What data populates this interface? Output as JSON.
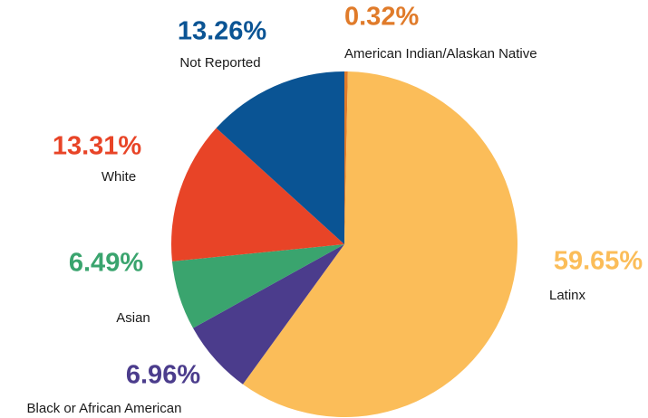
{
  "chart_data": {
    "type": "pie",
    "categories": [
      "American Indian/Alaskan Native",
      "Latinx",
      "Black or African American",
      "Asian",
      "White",
      "Not Reported"
    ],
    "values": [
      0.32,
      59.65,
      6.96,
      6.49,
      13.31,
      13.26
    ],
    "value_labels": [
      "0.32%",
      "59.65%",
      "6.96%",
      "6.49%",
      "13.31%",
      "13.26%"
    ],
    "colors": [
      "#e07b2a",
      "#fbbd59",
      "#4b3c8c",
      "#3aa46e",
      "#e84427",
      "#0a5494"
    ]
  }
}
